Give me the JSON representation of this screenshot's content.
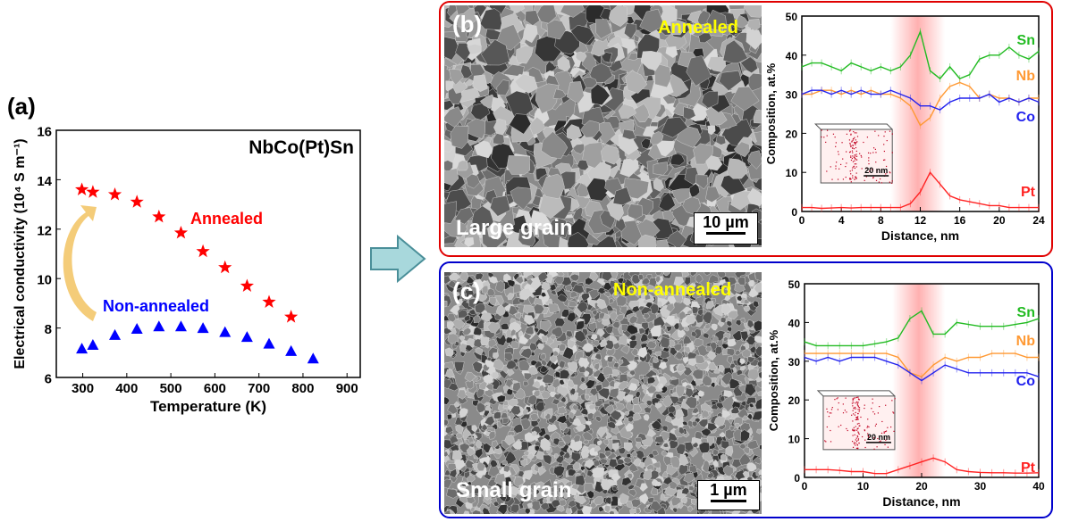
{
  "panels": {
    "a": {
      "label": "(a)"
    },
    "b": {
      "label": "(b)",
      "state": "Annealed",
      "grain": "Large grain",
      "scale": "10 µm"
    },
    "c": {
      "label": "(c)",
      "state": "Non-annealed",
      "grain": "Small grain",
      "scale": "1 µm"
    }
  },
  "colors": {
    "annealed": "#ff0000",
    "non_annealed": "#0000ff",
    "Sn": "#22bb22",
    "Nb": "#ff9933",
    "Co": "#2222ee",
    "Pt": "#ff2222",
    "box_b": "#e00000",
    "box_c": "#0000cc",
    "state_text": "#ffff00"
  },
  "chart_data": [
    {
      "id": "a",
      "type": "scatter",
      "title": "NbCo(Pt)Sn",
      "xlabel": "Temperature (K)",
      "ylabel": "Electrical conductivity (10⁴ S m⁻¹)",
      "xlim": [
        240,
        930
      ],
      "ylim": [
        6,
        16
      ],
      "xticks": [
        300,
        400,
        500,
        600,
        700,
        800,
        900
      ],
      "yticks": [
        6,
        8,
        10,
        12,
        14,
        16
      ],
      "series": [
        {
          "name": "Annealed",
          "marker": "star",
          "x": [
            298,
            323,
            373,
            423,
            473,
            523,
            573,
            623,
            673,
            723,
            773
          ],
          "y": [
            13.6,
            13.5,
            13.4,
            13.1,
            12.5,
            11.85,
            11.1,
            10.45,
            9.7,
            9.05,
            8.45
          ]
        },
        {
          "name": "Non-annealed",
          "marker": "triangle",
          "x": [
            298,
            323,
            373,
            423,
            473,
            523,
            573,
            623,
            673,
            723,
            773,
            823
          ],
          "y": [
            7.15,
            7.3,
            7.7,
            7.95,
            8.05,
            8.05,
            7.98,
            7.82,
            7.62,
            7.35,
            7.05,
            6.75
          ]
        }
      ]
    },
    {
      "id": "b",
      "type": "line",
      "xlabel": "Distance, nm",
      "ylabel": "Composition, at.%",
      "xlim": [
        0,
        24
      ],
      "ylim": [
        0,
        50
      ],
      "xticks": [
        0,
        4,
        8,
        12,
        16,
        20,
        24
      ],
      "yticks": [
        0,
        10,
        20,
        30,
        40,
        50
      ],
      "highlight_band": [
        9,
        14.5
      ],
      "inset_scale": "20 nm",
      "x": [
        0,
        1,
        2,
        3,
        4,
        5,
        6,
        7,
        8,
        9,
        10,
        11,
        12,
        13,
        14,
        15,
        16,
        17,
        18,
        19,
        20,
        21,
        22,
        23,
        24
      ],
      "series": [
        {
          "name": "Sn",
          "values": [
            37,
            38,
            38,
            37,
            36,
            38,
            37,
            36,
            37,
            36,
            37,
            40,
            46,
            36,
            34,
            37,
            34,
            35,
            39,
            40,
            40,
            42,
            40,
            39,
            41
          ]
        },
        {
          "name": "Nb",
          "values": [
            30,
            30,
            31,
            31,
            30,
            31,
            30,
            31,
            30,
            30,
            29,
            27,
            22,
            24,
            29,
            32,
            33,
            32,
            29,
            30,
            29,
            29,
            28,
            29,
            29
          ]
        },
        {
          "name": "Co",
          "values": [
            30,
            31,
            31,
            30,
            31,
            30,
            31,
            30,
            30,
            31,
            30,
            29,
            27,
            27,
            26,
            28,
            29,
            29,
            29,
            30,
            28,
            29,
            28,
            29,
            28
          ]
        },
        {
          "name": "Pt",
          "values": [
            1,
            1,
            0.8,
            0.9,
            1,
            0.9,
            1,
            1,
            1,
            1,
            1,
            2,
            5,
            10,
            7,
            4,
            3,
            2.5,
            2,
            1.5,
            1.5,
            1,
            1,
            1,
            1
          ]
        }
      ]
    },
    {
      "id": "c",
      "type": "line",
      "xlabel": "Distance, nm",
      "ylabel": "Composition, at.%",
      "xlim": [
        0,
        40
      ],
      "ylim": [
        0,
        50
      ],
      "xticks": [
        0,
        10,
        20,
        30,
        40
      ],
      "yticks": [
        0,
        10,
        20,
        30,
        40,
        50
      ],
      "highlight_band": [
        15,
        24
      ],
      "inset_scale": "20 nm",
      "x": [
        0,
        2,
        4,
        6,
        8,
        10,
        12,
        14,
        16,
        18,
        20,
        22,
        24,
        26,
        28,
        30,
        32,
        34,
        36,
        38,
        40
      ],
      "series": [
        {
          "name": "Sn",
          "values": [
            35,
            34,
            34,
            34,
            34,
            34,
            34.5,
            35,
            36,
            41,
            43,
            37,
            37,
            40,
            39.5,
            39,
            39,
            39,
            39.5,
            40,
            41
          ]
        },
        {
          "name": "Nb",
          "values": [
            32,
            32,
            32,
            32,
            32,
            32,
            32,
            32,
            31,
            27,
            26,
            29,
            31,
            30,
            31,
            31,
            32,
            32,
            32,
            31,
            31
          ]
        },
        {
          "name": "Co",
          "values": [
            31,
            30,
            31,
            30,
            31,
            31,
            31,
            30,
            29,
            27,
            25,
            27,
            29,
            28,
            27,
            27,
            27,
            27,
            27,
            27,
            26
          ]
        },
        {
          "name": "Pt",
          "values": [
            2,
            2,
            2,
            1.8,
            1.5,
            1.5,
            1,
            1,
            2,
            3,
            4,
            5,
            4,
            2,
            1.5,
            1.3,
            1.2,
            1.2,
            1.1,
            1.1,
            1.2
          ]
        }
      ]
    }
  ]
}
